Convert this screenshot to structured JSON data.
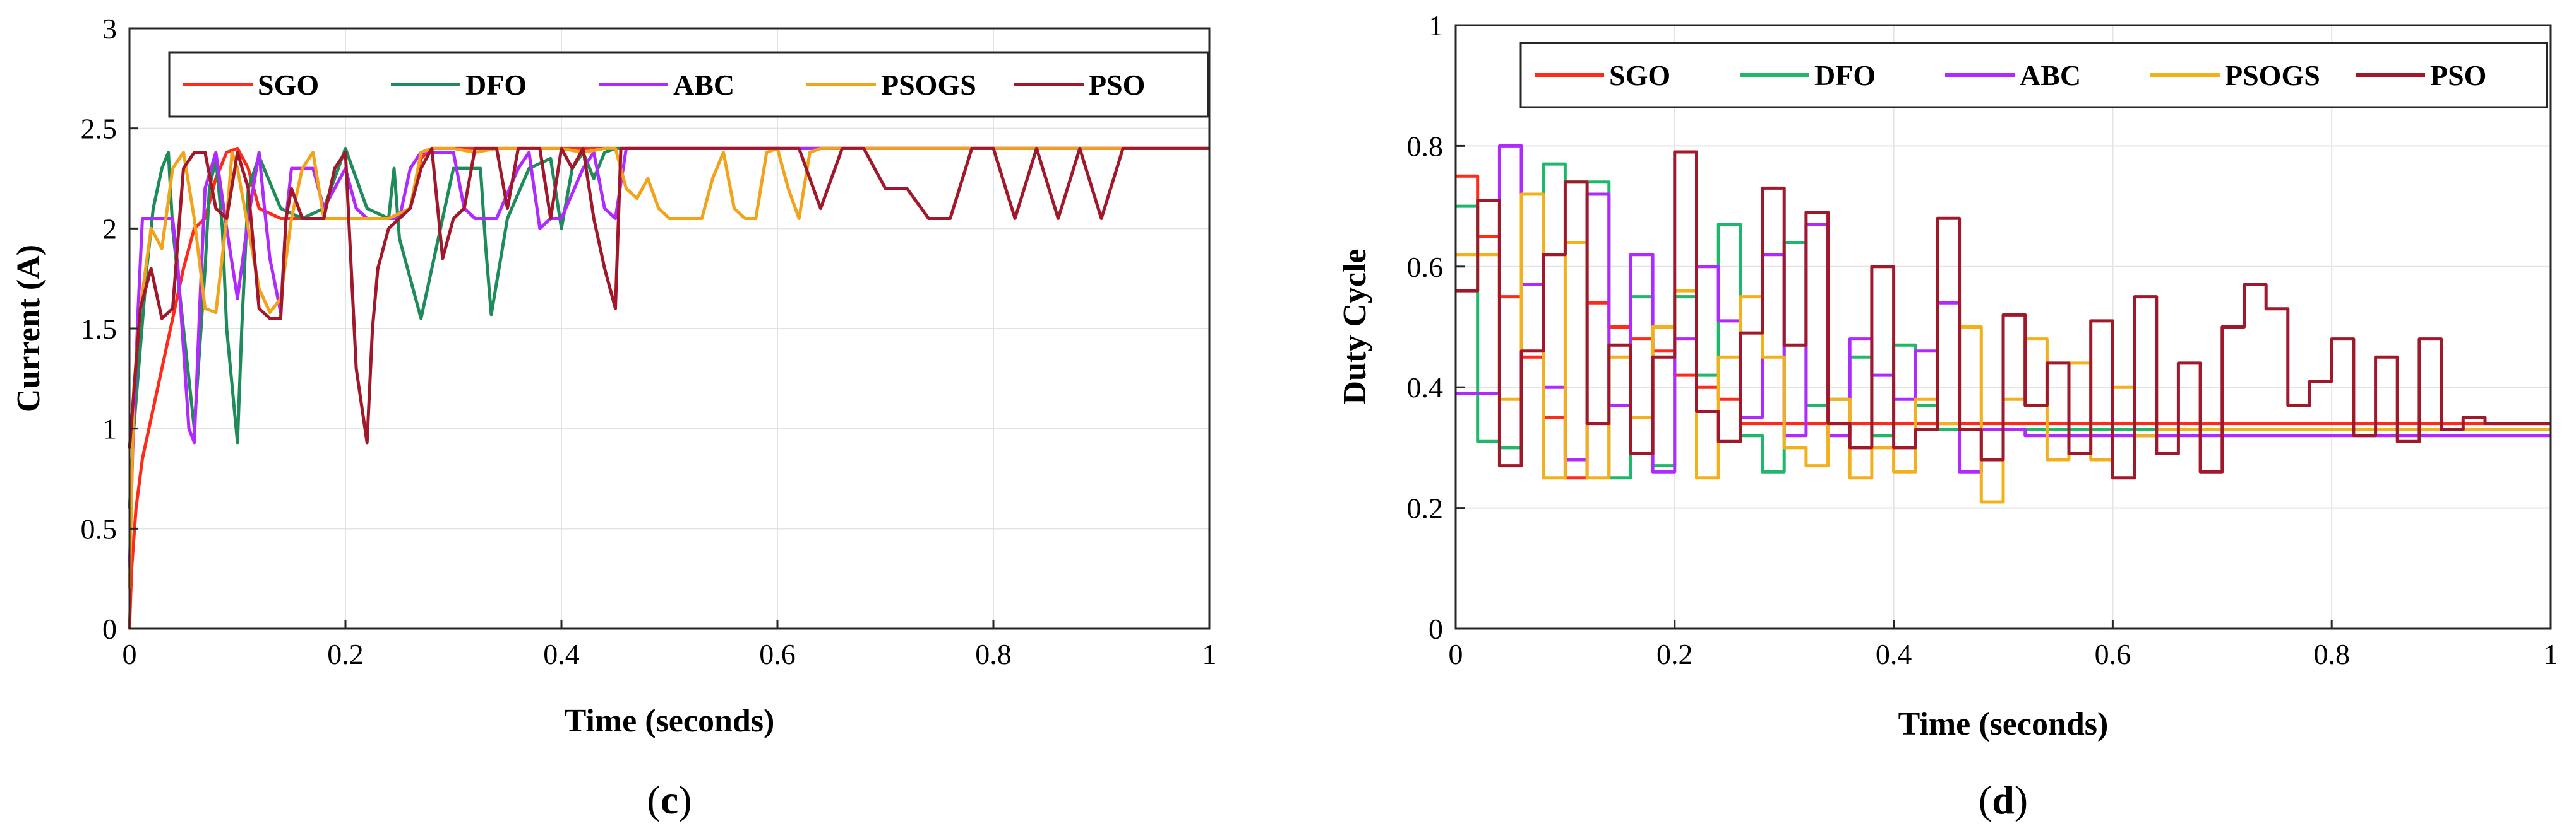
{
  "chart_data": [
    {
      "type": "line",
      "panel_label": "c",
      "xlabel": "Time (seconds)",
      "ylabel": "Current (A)",
      "xlim": [
        0,
        1
      ],
      "ylim": [
        0,
        3
      ],
      "xticks": [
        0,
        0.2,
        0.4,
        0.6,
        0.8,
        1
      ],
      "yticks": [
        0,
        0.5,
        1,
        1.5,
        2,
        2.5,
        3
      ],
      "xtick_labels": [
        "0",
        "0.2",
        "0.4",
        "0.6",
        "0.8",
        "1"
      ],
      "ytick_labels": [
        "0",
        "0.5",
        "1",
        "1.5",
        "2",
        "2.5",
        "3"
      ],
      "grid": true,
      "legend_position": "top",
      "series": [
        {
          "name": "SGO",
          "color": "#ff2a1a",
          "x": [
            0,
            0.002,
            0.006,
            0.012,
            0.02,
            0.03,
            0.04,
            0.05,
            0.06,
            0.07,
            0.08,
            0.09,
            0.1,
            0.11,
            0.12,
            0.14,
            0.16,
            0.2,
            0.24,
            0.26,
            0.27,
            0.28,
            0.3,
            1
          ],
          "y": [
            0,
            0.3,
            0.6,
            0.85,
            1.05,
            1.3,
            1.55,
            1.8,
            2.0,
            2.05,
            2.25,
            2.38,
            2.4,
            2.3,
            2.1,
            2.05,
            2.05,
            2.05,
            2.05,
            2.1,
            2.35,
            2.4,
            2.4,
            2.4
          ]
        },
        {
          "name": "DFO",
          "color": "#1e8c5a",
          "x": [
            0,
            0.004,
            0.01,
            0.016,
            0.022,
            0.03,
            0.036,
            0.04,
            0.05,
            0.06,
            0.07,
            0.074,
            0.08,
            0.086,
            0.09,
            0.1,
            0.104,
            0.11,
            0.12,
            0.14,
            0.16,
            0.18,
            0.2,
            0.22,
            0.24,
            0.245,
            0.25,
            0.27,
            0.3,
            0.325,
            0.33,
            0.335,
            0.35,
            0.37,
            0.39,
            0.4,
            0.41,
            0.42,
            0.43,
            0.44,
            0.45,
            1
          ],
          "y": [
            0.6,
            1.0,
            1.4,
            1.8,
            2.1,
            2.3,
            2.38,
            2.0,
            1.5,
            1.0,
            1.8,
            2.2,
            2.35,
            2.0,
            1.5,
            0.93,
            1.5,
            2.2,
            2.36,
            2.1,
            2.05,
            2.1,
            2.4,
            2.1,
            2.05,
            2.3,
            1.95,
            1.55,
            2.3,
            2.3,
            1.9,
            1.57,
            2.05,
            2.3,
            2.35,
            2.0,
            2.3,
            2.38,
            2.25,
            2.38,
            2.4,
            2.4
          ]
        },
        {
          "name": "ABC",
          "color": "#b02aff",
          "x": [
            0,
            0.003,
            0.008,
            0.012,
            0.02,
            0.03,
            0.04,
            0.045,
            0.05,
            0.055,
            0.06,
            0.065,
            0.07,
            0.08,
            0.09,
            0.1,
            0.11,
            0.12,
            0.125,
            0.13,
            0.14,
            0.145,
            0.15,
            0.16,
            0.17,
            0.18,
            0.2,
            0.21,
            0.22,
            0.23,
            0.25,
            0.26,
            0.27,
            0.28,
            0.29,
            0.3,
            0.31,
            0.32,
            0.33,
            0.34,
            0.36,
            0.37,
            0.38,
            0.39,
            0.4,
            0.42,
            0.43,
            0.44,
            0.45,
            0.46,
            1
          ],
          "y": [
            0.3,
            0.9,
            1.6,
            2.05,
            2.05,
            2.05,
            2.05,
            1.8,
            1.4,
            1.0,
            0.93,
            1.6,
            2.2,
            2.38,
            2.0,
            1.65,
            2.05,
            2.38,
            2.1,
            1.85,
            1.58,
            2.05,
            2.3,
            2.3,
            2.3,
            2.1,
            2.3,
            2.1,
            2.05,
            2.05,
            2.05,
            2.3,
            2.38,
            2.38,
            2.38,
            2.38,
            2.1,
            2.05,
            2.05,
            2.05,
            2.3,
            2.38,
            2.0,
            2.05,
            2.05,
            2.3,
            2.38,
            2.1,
            2.05,
            2.4,
            2.4
          ]
        },
        {
          "name": "PSOGS",
          "color": "#f2a31a",
          "x": [
            0,
            0.004,
            0.01,
            0.02,
            0.03,
            0.04,
            0.05,
            0.06,
            0.07,
            0.08,
            0.09,
            0.095,
            0.1,
            0.11,
            0.12,
            0.13,
            0.14,
            0.15,
            0.16,
            0.17,
            0.18,
            0.2,
            0.22,
            0.24,
            0.26,
            0.27,
            0.28,
            0.3,
            0.32,
            0.34,
            0.36,
            0.38,
            0.4,
            0.42,
            0.44,
            0.45,
            0.46,
            0.47,
            0.48,
            0.49,
            0.5,
            0.51,
            0.52,
            0.53,
            0.54,
            0.55,
            0.56,
            0.57,
            0.58,
            0.59,
            0.6,
            0.61,
            0.62,
            0.63,
            0.64,
            0.66,
            1
          ],
          "y": [
            0.2,
            1.2,
            1.6,
            2.0,
            1.9,
            2.3,
            2.38,
            2.05,
            1.6,
            1.58,
            2.05,
            2.38,
            2.3,
            2.0,
            1.7,
            1.58,
            1.65,
            2.05,
            2.3,
            2.38,
            2.05,
            2.05,
            2.05,
            2.05,
            2.1,
            2.38,
            2.4,
            2.4,
            2.38,
            2.4,
            2.4,
            2.4,
            2.4,
            2.38,
            2.4,
            2.4,
            2.2,
            2.15,
            2.25,
            2.1,
            2.05,
            2.05,
            2.05,
            2.05,
            2.25,
            2.38,
            2.1,
            2.05,
            2.05,
            2.38,
            2.4,
            2.2,
            2.05,
            2.38,
            2.4,
            2.4,
            2.4
          ]
        },
        {
          "name": "PSO",
          "color": "#a0182a",
          "x": [
            0,
            0.01,
            0.02,
            0.03,
            0.04,
            0.05,
            0.06,
            0.07,
            0.08,
            0.09,
            0.1,
            0.11,
            0.12,
            0.13,
            0.14,
            0.145,
            0.15,
            0.16,
            0.18,
            0.19,
            0.2,
            0.21,
            0.22,
            0.225,
            0.23,
            0.24,
            0.26,
            0.27,
            0.28,
            0.29,
            0.3,
            0.31,
            0.32,
            0.33,
            0.34,
            0.35,
            0.36,
            0.37,
            0.38,
            0.39,
            0.4,
            0.41,
            0.42,
            0.43,
            0.44,
            0.45,
            0.455,
            0.46,
            0.48,
            0.5,
            0.52,
            0.54,
            0.56,
            0.58,
            0.6,
            0.62,
            0.64,
            0.66,
            0.68,
            0.7,
            0.72,
            0.74,
            0.76,
            0.78,
            0.8,
            0.82,
            0.84,
            0.86,
            0.88,
            0.9,
            0.92,
            1
          ],
          "y": [
            0.9,
            1.6,
            1.8,
            1.55,
            1.6,
            2.3,
            2.38,
            2.38,
            2.1,
            2.05,
            2.38,
            2.2,
            1.6,
            1.55,
            1.55,
            2.05,
            2.2,
            2.05,
            2.05,
            2.3,
            2.38,
            1.3,
            0.93,
            1.5,
            1.8,
            2.0,
            2.1,
            2.3,
            2.4,
            1.85,
            2.05,
            2.1,
            2.4,
            2.4,
            2.4,
            2.1,
            2.4,
            2.4,
            2.4,
            2.05,
            2.4,
            2.3,
            2.4,
            2.05,
            1.8,
            1.6,
            2.4,
            2.4,
            2.4,
            2.4,
            2.4,
            2.4,
            2.4,
            2.4,
            2.4,
            2.4,
            2.1,
            2.4,
            2.4,
            2.2,
            2.2,
            2.05,
            2.05,
            2.4,
            2.4,
            2.05,
            2.4,
            2.05,
            2.4,
            2.05,
            2.4,
            2.4
          ]
        }
      ]
    },
    {
      "type": "line",
      "panel_label": "d",
      "xlabel": "Time (seconds)",
      "ylabel": "Duty Cycle",
      "xlim": [
        0,
        1
      ],
      "ylim": [
        0,
        1
      ],
      "xticks": [
        0,
        0.2,
        0.4,
        0.6,
        0.8,
        1
      ],
      "yticks": [
        0,
        0.2,
        0.4,
        0.6,
        0.8,
        1
      ],
      "xtick_labels": [
        "0",
        "0.2",
        "0.4",
        "0.6",
        "0.8",
        "1"
      ],
      "ytick_labels": [
        "0",
        "0.2",
        "0.4",
        "0.6",
        "0.8",
        "1"
      ],
      "grid": true,
      "legend_position": "top",
      "step": true,
      "series": [
        {
          "name": "SGO",
          "color": "#ff2a1a",
          "x": [
            0,
            0.02,
            0.04,
            0.06,
            0.08,
            0.1,
            0.12,
            0.14,
            0.16,
            0.18,
            0.2,
            0.22,
            0.24,
            0.26,
            0.28,
            1
          ],
          "y": [
            0.75,
            0.65,
            0.55,
            0.45,
            0.35,
            0.25,
            0.54,
            0.5,
            0.48,
            0.46,
            0.42,
            0.4,
            0.38,
            0.34,
            0.34,
            0.34
          ]
        },
        {
          "name": "DFO",
          "color": "#1fb86a",
          "x": [
            0,
            0.02,
            0.04,
            0.06,
            0.08,
            0.1,
            0.12,
            0.14,
            0.16,
            0.18,
            0.2,
            0.22,
            0.24,
            0.26,
            0.28,
            0.3,
            0.32,
            0.34,
            0.36,
            0.38,
            0.4,
            0.42,
            0.44,
            0.46,
            0.48,
            0.5,
            0.52,
            0.54,
            0.56,
            0.58,
            0.6,
            0.62,
            1
          ],
          "y": [
            0.7,
            0.31,
            0.3,
            0.57,
            0.77,
            0.74,
            0.74,
            0.25,
            0.55,
            0.27,
            0.55,
            0.42,
            0.67,
            0.32,
            0.26,
            0.64,
            0.37,
            0.38,
            0.45,
            0.32,
            0.47,
            0.37,
            0.33,
            0.33,
            0.33,
            0.33,
            0.33,
            0.33,
            0.33,
            0.33,
            0.33,
            0.33,
            0.33
          ]
        },
        {
          "name": "ABC",
          "color": "#b02aff",
          "x": [
            0,
            0.02,
            0.04,
            0.06,
            0.08,
            0.1,
            0.12,
            0.14,
            0.16,
            0.18,
            0.2,
            0.22,
            0.24,
            0.26,
            0.28,
            0.3,
            0.32,
            0.34,
            0.36,
            0.38,
            0.4,
            0.42,
            0.44,
            0.46,
            0.48,
            0.5,
            0.52,
            0.54,
            0.56,
            0.58,
            0.6,
            0.62,
            1
          ],
          "y": [
            0.39,
            0.39,
            0.8,
            0.57,
            0.4,
            0.28,
            0.72,
            0.37,
            0.62,
            0.26,
            0.48,
            0.6,
            0.51,
            0.35,
            0.62,
            0.32,
            0.67,
            0.32,
            0.48,
            0.42,
            0.38,
            0.46,
            0.54,
            0.26,
            0.33,
            0.33,
            0.32,
            0.32,
            0.32,
            0.32,
            0.32,
            0.32,
            0.32
          ]
        },
        {
          "name": "PSOGS",
          "color": "#f2b01a",
          "x": [
            0,
            0.02,
            0.04,
            0.06,
            0.08,
            0.1,
            0.12,
            0.14,
            0.16,
            0.18,
            0.2,
            0.22,
            0.24,
            0.26,
            0.28,
            0.3,
            0.32,
            0.34,
            0.36,
            0.38,
            0.4,
            0.42,
            0.44,
            0.46,
            0.48,
            0.5,
            0.52,
            0.54,
            0.56,
            0.58,
            0.6,
            0.62,
            0.64,
            1
          ],
          "y": [
            0.62,
            0.62,
            0.38,
            0.72,
            0.25,
            0.64,
            0.25,
            0.45,
            0.35,
            0.5,
            0.56,
            0.25,
            0.45,
            0.55,
            0.45,
            0.3,
            0.27,
            0.38,
            0.25,
            0.3,
            0.26,
            0.38,
            0.34,
            0.5,
            0.21,
            0.38,
            0.48,
            0.28,
            0.44,
            0.28,
            0.4,
            0.32,
            0.33,
            0.33
          ]
        },
        {
          "name": "PSO",
          "color": "#a0182a",
          "x": [
            0,
            0.02,
            0.04,
            0.06,
            0.08,
            0.1,
            0.12,
            0.14,
            0.16,
            0.18,
            0.2,
            0.22,
            0.24,
            0.26,
            0.28,
            0.3,
            0.32,
            0.34,
            0.36,
            0.38,
            0.4,
            0.42,
            0.44,
            0.46,
            0.48,
            0.5,
            0.52,
            0.54,
            0.56,
            0.58,
            0.6,
            0.62,
            0.64,
            0.66,
            0.68,
            0.7,
            0.72,
            0.74,
            0.76,
            0.78,
            0.8,
            0.82,
            0.84,
            0.86,
            0.88,
            0.9,
            0.92,
            0.94,
            0.96,
            1
          ],
          "y": [
            0.56,
            0.71,
            0.27,
            0.46,
            0.62,
            0.74,
            0.34,
            0.47,
            0.29,
            0.45,
            0.79,
            0.36,
            0.31,
            0.49,
            0.73,
            0.47,
            0.69,
            0.34,
            0.3,
            0.6,
            0.3,
            0.33,
            0.68,
            0.33,
            0.28,
            0.52,
            0.37,
            0.44,
            0.29,
            0.51,
            0.25,
            0.55,
            0.29,
            0.44,
            0.26,
            0.5,
            0.57,
            0.53,
            0.37,
            0.41,
            0.48,
            0.32,
            0.45,
            0.31,
            0.48,
            0.33,
            0.35,
            0.34,
            0.34,
            0.34
          ]
        }
      ]
    }
  ]
}
